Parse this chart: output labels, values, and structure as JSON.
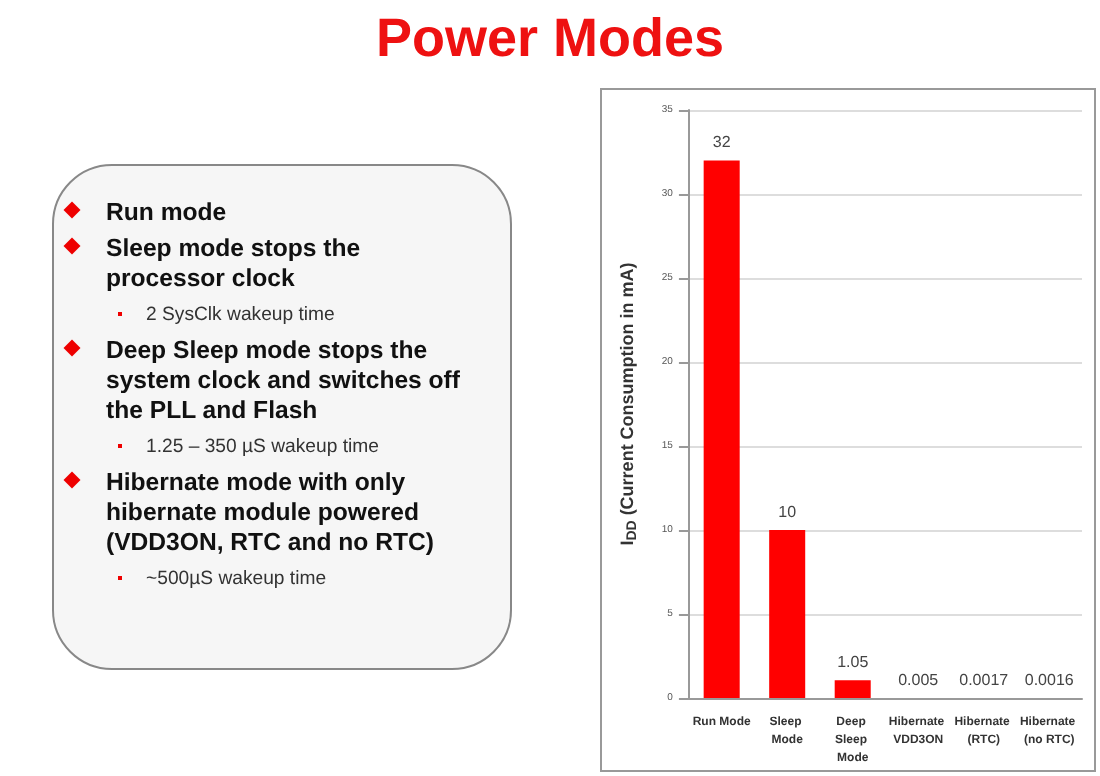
{
  "chart_data": [
    {
      "type": "other",
      "title": "Power Modes",
      "annotations": [
        "Run mode",
        "Sleep mode stops the processor clock",
        "2 SysClk wakeup time",
        "Deep Sleep mode stops the system clock and switches off the PLL and Flash",
        "1.25 – 350 µS wakeup time",
        "Hibernate mode with only hibernate module powered (VDD3ON, RTC and no RTC)",
        "~500µS wakeup time"
      ]
    },
    {
      "type": "bar",
      "ylabel": "I$_{DD}$ (Current Consumption in mA)",
      "categories": [
        "Run Mode",
        "Sleep Mode",
        "Deep Sleep Mode",
        "Hibernate VDD3ON",
        "Hibernate (RTC)",
        "Hibernate (no RTC)"
      ],
      "values": [
        32,
        10,
        1.05,
        0.005,
        0.0017,
        0.0016
      ],
      "color": "#ff0000",
      "data_labels": true,
      "ylim": [
        0,
        35
      ],
      "yticks": [
        0,
        5,
        10,
        15,
        20,
        25,
        30,
        35
      ],
      "grid": "y"
    }
  ]
}
